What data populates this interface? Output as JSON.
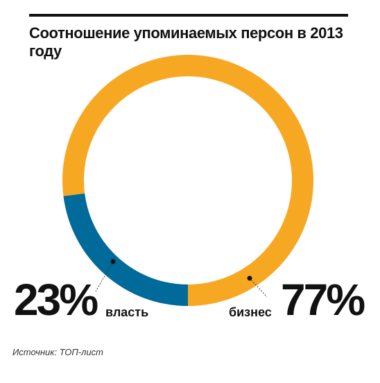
{
  "title": "Соотношение упоминаемых персон в 2013 году",
  "source": "Источник: ТОП-лист",
  "chart_data": {
    "type": "pie",
    "title": "Соотношение упоминаемых персон в 2013 году",
    "slices": [
      {
        "label": "власть",
        "value": 23,
        "value_text": "23%",
        "color": "#006a9a"
      },
      {
        "label": "бизнес",
        "value": 77,
        "value_text": "77%",
        "color": "#f7a823"
      }
    ],
    "style": "donut"
  }
}
